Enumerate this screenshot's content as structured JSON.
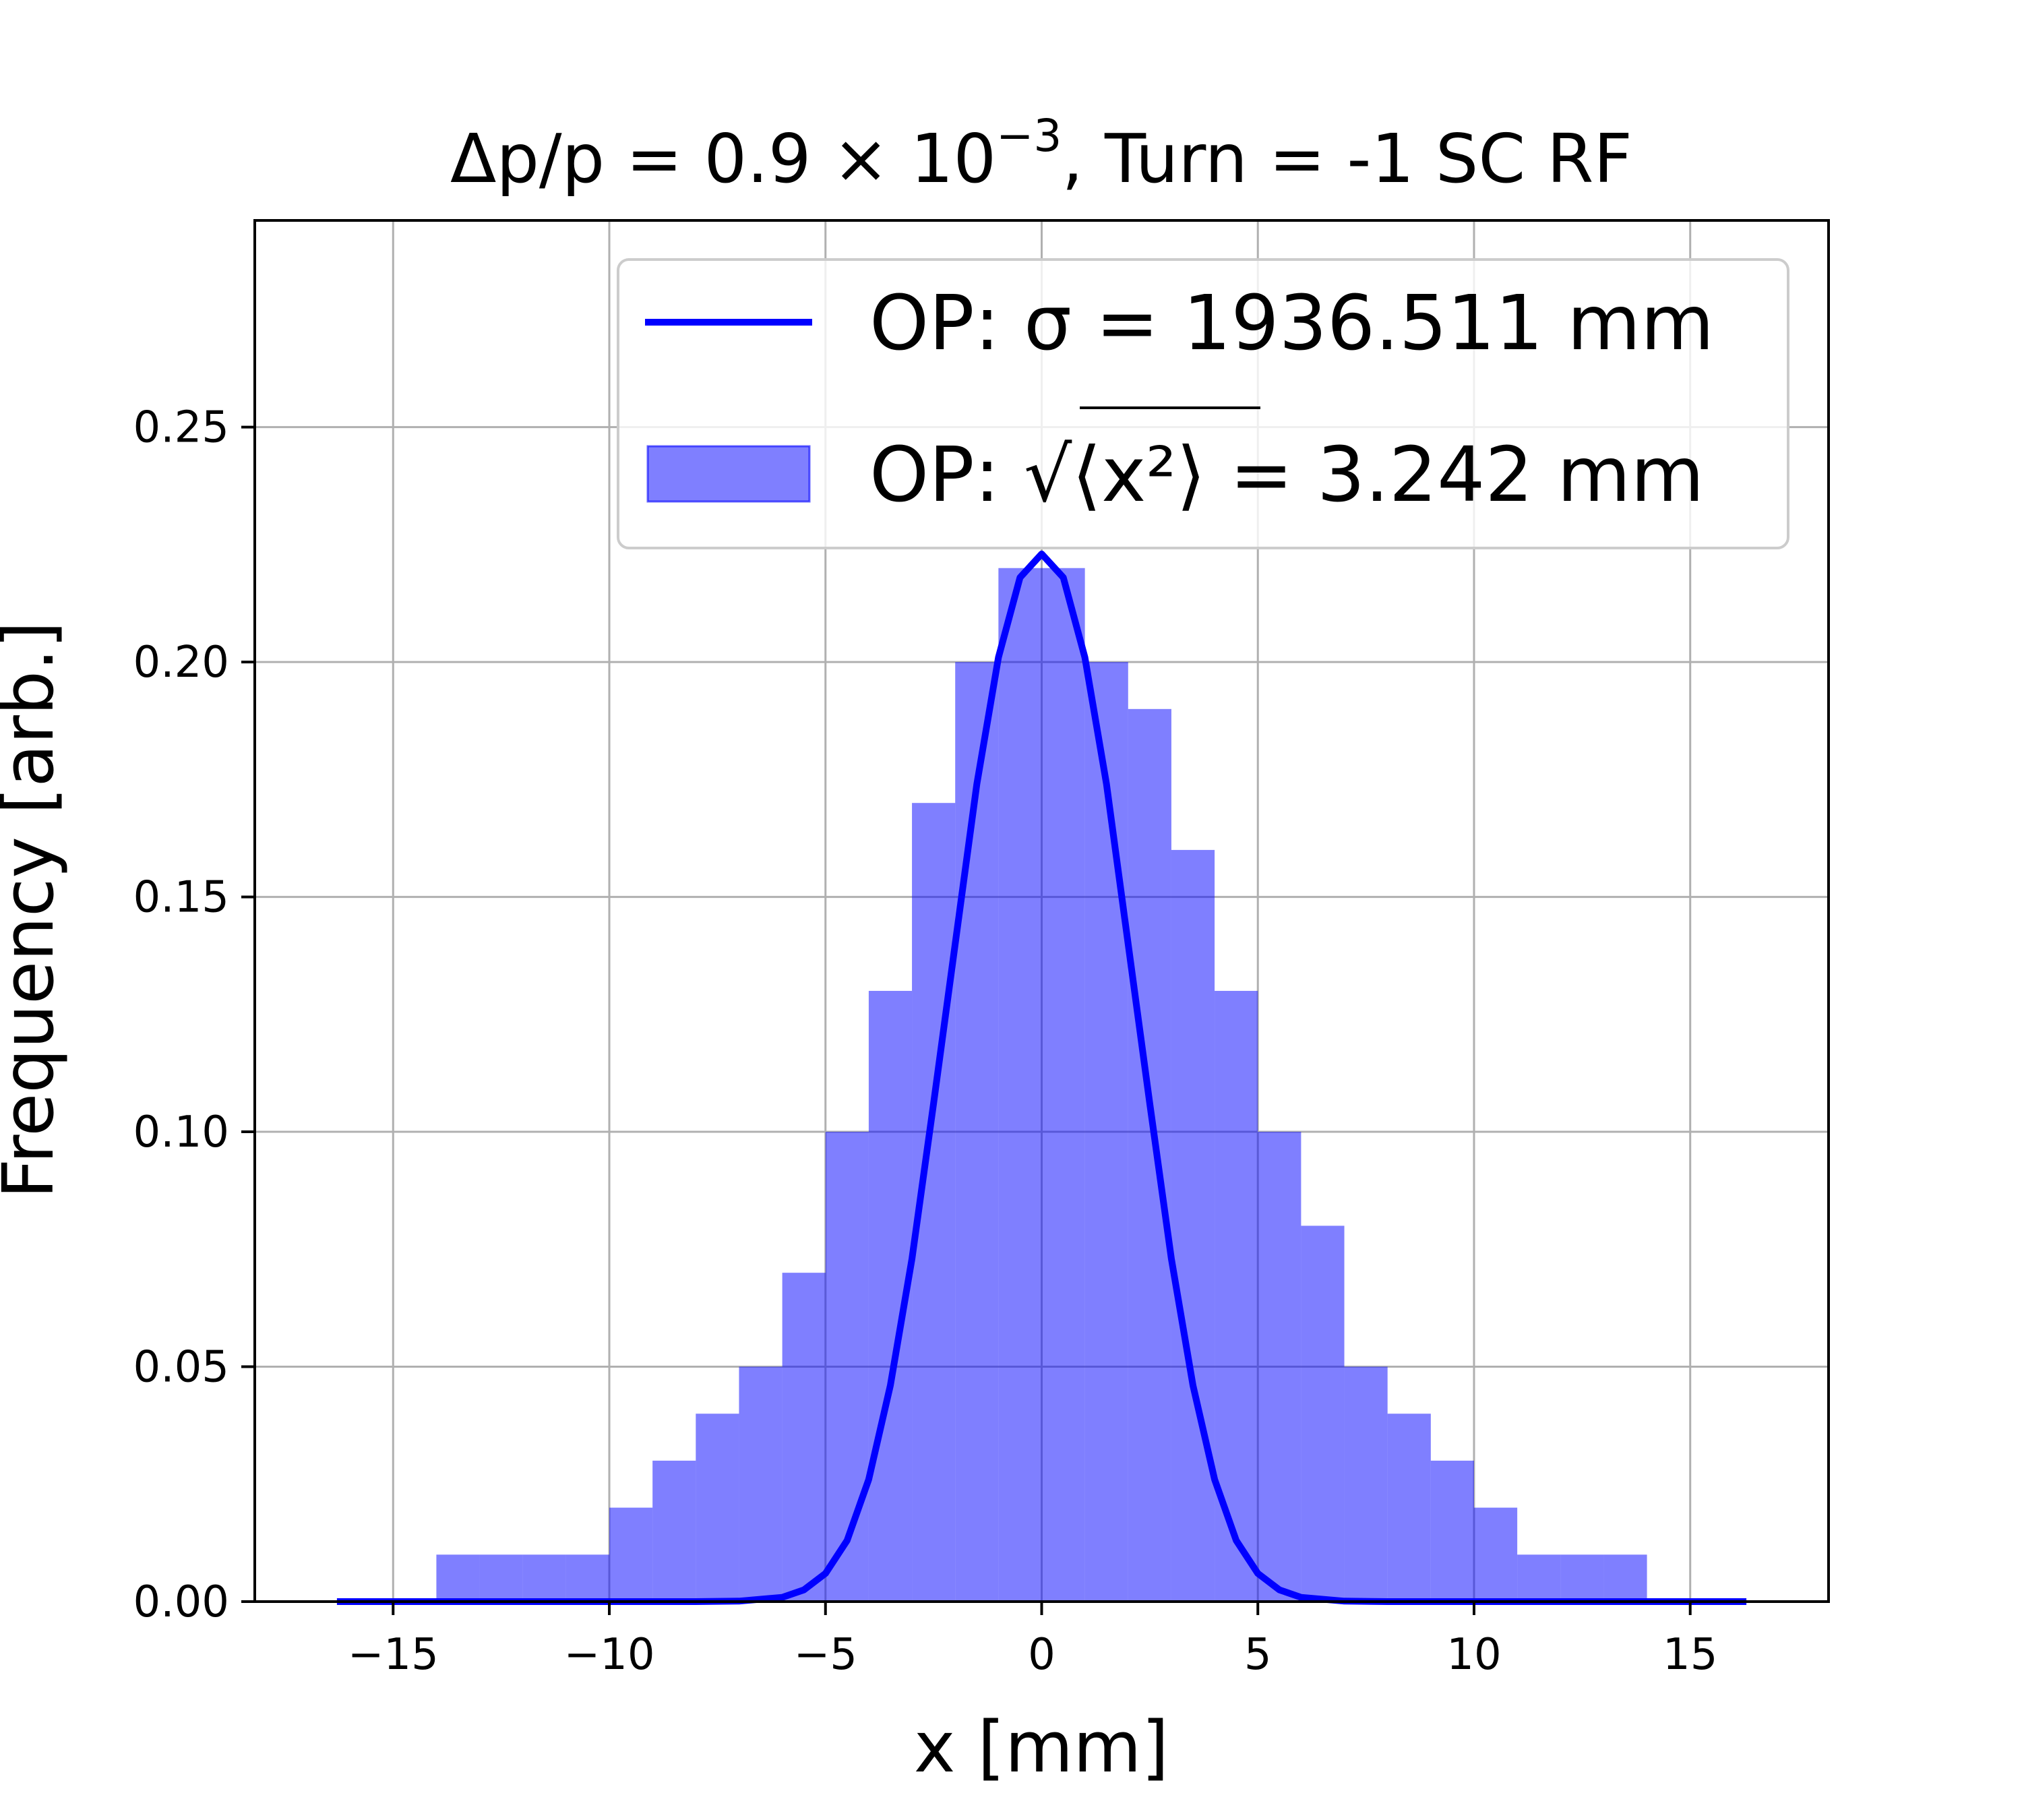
{
  "chart_data": {
    "type": "bar",
    "title": {
      "prefix": "Δp/p = 0.9 × 10",
      "exponent": "−3",
      "suffix": ", Turn = -1 SC RF"
    },
    "xlabel": "x [mm]",
    "ylabel": "Frequency [arb.]",
    "xlim": [
      -18.2,
      18.2
    ],
    "ylim": [
      0,
      0.294
    ],
    "grid": true,
    "legend_placement": "upper-right",
    "x_ticks": [
      -15,
      -10,
      -5,
      0,
      5,
      10,
      15
    ],
    "x_tick_labels": [
      "−15",
      "−10",
      "−5",
      "0",
      "5",
      "10",
      "15"
    ],
    "y_ticks": [
      0,
      0.05,
      0.1,
      0.15,
      0.2,
      0.25
    ],
    "y_tick_labels": [
      "0.00",
      "0.05",
      "0.10",
      "0.15",
      "0.20",
      "0.25"
    ],
    "series": [
      {
        "name": "OP: σ = 1936.511 mm",
        "legend_prefix": "OP: σ = 1936.511 mm",
        "kind": "line",
        "color": "#0000ff",
        "x": [
          -16.3,
          -14,
          -12,
          -10,
          -8,
          -7,
          -6,
          -5.5,
          -5,
          -4.5,
          -4,
          -3.5,
          -3,
          -2.5,
          -2,
          -1.5,
          -1,
          -0.5,
          0,
          0.5,
          1,
          1.5,
          2,
          2.5,
          3,
          3.5,
          4,
          4.5,
          5,
          5.5,
          6,
          7,
          8,
          10,
          12,
          14,
          16.3
        ],
        "y": [
          0,
          0,
          0,
          0,
          0,
          0.0001,
          0.0009,
          0.0025,
          0.006,
          0.013,
          0.026,
          0.046,
          0.073,
          0.106,
          0.14,
          0.174,
          0.201,
          0.218,
          0.223,
          0.218,
          0.201,
          0.174,
          0.14,
          0.106,
          0.073,
          0.046,
          0.026,
          0.013,
          0.006,
          0.0025,
          0.0009,
          0.0001,
          0,
          0,
          0,
          0,
          0
        ]
      },
      {
        "name": "OP: √⟨x²⟩ = 3.242 mm",
        "legend_prefix": "OP: √",
        "legend_math": "⟨x²⟩",
        "legend_suffix": " = 3.242 mm",
        "kind": "histogram",
        "color": "#0000ff",
        "opacity": 0.5,
        "bin_width": 1,
        "bins_left": [
          -14,
          -13,
          -12,
          -11,
          -10,
          -9,
          -8,
          -7,
          -6,
          -5,
          -4,
          -3,
          -2,
          -1,
          0,
          1,
          2,
          3,
          4,
          5,
          6,
          7,
          8,
          9,
          10,
          11,
          12,
          13
        ],
        "bins_height": [
          0.01,
          0.01,
          0.01,
          0.01,
          0.02,
          0.03,
          0.04,
          0.05,
          0.07,
          0.1,
          0.13,
          0.17,
          0.2,
          0.22,
          0.22,
          0.2,
          0.19,
          0.16,
          0.13,
          0.1,
          0.08,
          0.05,
          0.04,
          0.03,
          0.02,
          0.01,
          0.01,
          0.01
        ]
      }
    ]
  }
}
